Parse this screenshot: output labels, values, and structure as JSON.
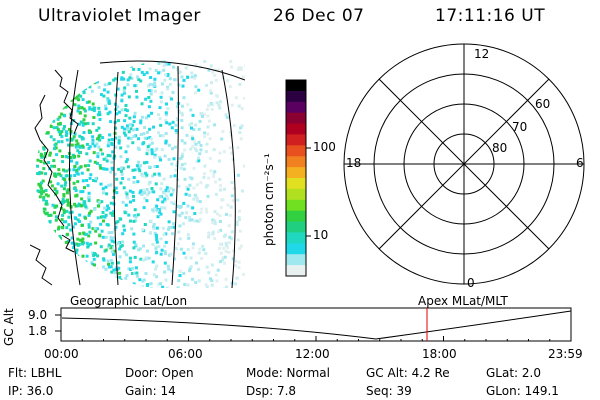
{
  "header": {
    "title": "Ultraviolet Imager",
    "date": "26 Dec 07",
    "time": "17:11:16 UT"
  },
  "colorbar": {
    "unit_label": "photon cm⁻²s⁻¹",
    "ticks": [
      "100",
      "10"
    ],
    "colors": [
      "#000000",
      "#2a0040",
      "#5a0060",
      "#8a0030",
      "#b00020",
      "#d02020",
      "#e85020",
      "#f08020",
      "#f4b020",
      "#e0e020",
      "#b0e020",
      "#70e020",
      "#30d040",
      "#20d080",
      "#20d8c0",
      "#20d8e8",
      "#a0e8f0",
      "#e8f0f0"
    ]
  },
  "polar": {
    "labels": {
      "top": "12",
      "left": "18",
      "right": "6",
      "bottom": "0",
      "lat60": "60",
      "lat70": "70",
      "lat80": "80"
    }
  },
  "timeline": {
    "geo_label": "Geographic Lat/Lon",
    "apex_label": "Apex  MLat/MLT",
    "ylabel": "GC Alt",
    "y_ticks": [
      "9.0",
      "1.8"
    ],
    "x_ticks": [
      "00:00",
      "06:00",
      "12:00",
      "18:00",
      "23:59"
    ],
    "marker_hour": 17.19,
    "min_hour": 15.7
  },
  "info": {
    "flt": "Flt: LBHL",
    "ip": "IP: 36.0",
    "door": "Door: Open",
    "gain": "Gain: 14",
    "mode": "Mode:  Normal",
    "dsp": "Dsp:       7.8",
    "gcalt": "GC Alt: 4.2 Re",
    "seq": "Seq:  39",
    "glat": "GLat:      2.0",
    "glon": "GLon:  149.1"
  }
}
